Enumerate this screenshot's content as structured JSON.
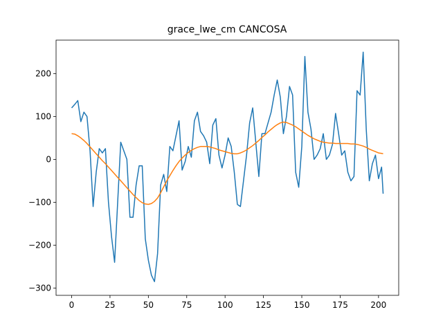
{
  "chart_data": {
    "type": "line",
    "title": "grace_lwe_cm CANCOSA",
    "x": [
      0,
      2,
      4,
      6,
      8,
      10,
      12,
      14,
      16,
      18,
      20,
      22,
      24,
      26,
      28,
      30,
      32,
      34,
      36,
      38,
      40,
      42,
      44,
      46,
      48,
      50,
      52,
      54,
      56,
      58,
      60,
      62,
      64,
      66,
      68,
      70,
      72,
      74,
      76,
      78,
      80,
      82,
      84,
      86,
      88,
      90,
      92,
      94,
      96,
      98,
      100,
      102,
      104,
      106,
      108,
      110,
      112,
      114,
      116,
      118,
      120,
      122,
      124,
      126,
      128,
      130,
      132,
      134,
      136,
      138,
      140,
      142,
      144,
      146,
      148,
      150,
      152,
      154,
      156,
      158,
      160,
      162,
      164,
      166,
      168,
      170,
      172,
      174,
      176,
      178,
      180,
      182,
      184,
      186,
      188,
      190,
      192,
      194,
      196,
      198,
      200,
      202,
      203
    ],
    "series": [
      {
        "color": "#1f77b4",
        "values": [
          120,
          128,
          137,
          88,
          110,
          100,
          20,
          -110,
          -30,
          25,
          15,
          25,
          -100,
          -180,
          -240,
          -100,
          40,
          20,
          0,
          -135,
          -135,
          -60,
          -15,
          -15,
          -185,
          -235,
          -270,
          -285,
          -220,
          -60,
          -35,
          -75,
          30,
          20,
          55,
          90,
          -25,
          -5,
          30,
          5,
          90,
          110,
          65,
          55,
          40,
          -10,
          80,
          95,
          10,
          -20,
          10,
          50,
          30,
          -30,
          -105,
          -110,
          -50,
          10,
          85,
          120,
          40,
          -40,
          60,
          60,
          85,
          110,
          150,
          185,
          145,
          60,
          100,
          170,
          150,
          -30,
          -65,
          30,
          240,
          110,
          70,
          0,
          10,
          25,
          60,
          0,
          10,
          35,
          107,
          60,
          10,
          20,
          -30,
          -50,
          -40,
          160,
          150,
          250,
          70,
          -50,
          -10,
          10,
          -45,
          -18,
          -80
        ]
      },
      {
        "color": "#ff7f0e",
        "values": [
          60,
          59,
          55,
          50,
          44,
          37,
          29,
          21,
          13,
          5,
          -3,
          -10,
          -18,
          -26,
          -34,
          -42,
          -50,
          -58,
          -66,
          -74,
          -82,
          -89,
          -96,
          -101,
          -104,
          -105,
          -103,
          -98,
          -90,
          -78,
          -64,
          -50,
          -38,
          -26,
          -15,
          -5,
          3,
          10,
          16,
          21,
          25,
          28,
          30,
          30,
          30,
          29,
          27,
          25,
          22,
          20,
          18,
          16,
          14,
          13,
          13,
          15,
          18,
          22,
          27,
          32,
          38,
          44,
          51,
          57,
          64,
          70,
          76,
          81,
          85,
          87,
          86,
          83,
          80,
          76,
          71,
          66,
          61,
          56,
          52,
          48,
          45,
          42,
          40,
          39,
          38,
          38,
          37,
          37,
          37,
          37,
          37,
          36,
          36,
          35,
          33,
          31,
          28,
          24,
          21,
          18,
          15,
          14,
          13
        ]
      }
    ],
    "xlim": [
      -10.15,
      213.15
    ],
    "ylim": [
      -317,
      278
    ],
    "xticks": [
      0,
      25,
      50,
      75,
      100,
      125,
      150,
      175,
      200
    ],
    "yticks": [
      {
        "value": -300,
        "label": "−300"
      },
      {
        "value": -200,
        "label": "−200"
      },
      {
        "value": -100,
        "label": "−100"
      },
      0,
      100,
      200
    ]
  }
}
